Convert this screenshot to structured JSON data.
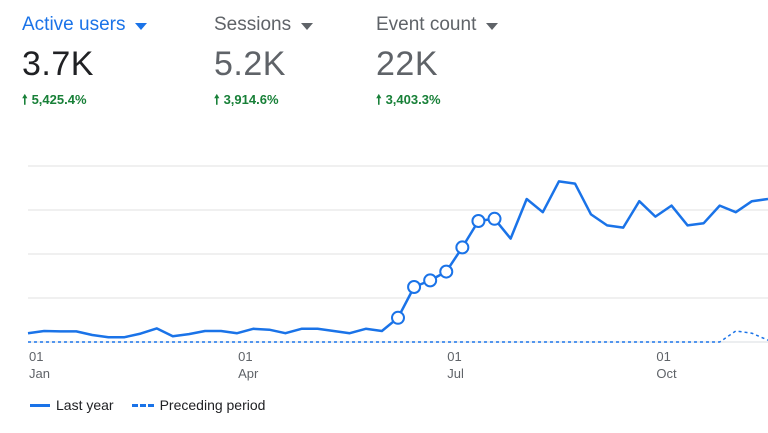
{
  "metrics": [
    {
      "label": "Active users",
      "value": "3.7K",
      "change": "5,425.4%",
      "active": true
    },
    {
      "label": "Sessions",
      "value": "5.2K",
      "change": "3,914.6%",
      "active": false
    },
    {
      "label": "Event count",
      "value": "22K",
      "change": "3,403.3%",
      "active": false
    }
  ],
  "colors": {
    "accent": "#1a73e8",
    "positive": "#188038",
    "grid": "#e0e0e0",
    "muted": "#5f6368"
  },
  "chart_data": {
    "type": "line",
    "x_axis_ticks": [
      {
        "day": "01",
        "month": "Jan",
        "week": 0
      },
      {
        "day": "01",
        "month": "Apr",
        "week": 13
      },
      {
        "day": "01",
        "month": "Jul",
        "week": 26
      },
      {
        "day": "01",
        "month": "Oct",
        "week": 39
      }
    ],
    "x_range": [
      0,
      46
    ],
    "ylim": [
      0,
      400
    ],
    "y_gridlines": [
      0,
      100,
      200,
      300,
      400
    ],
    "y_tick_labels_visible": false,
    "grid": true,
    "legend_position": "bottom-left",
    "series": [
      {
        "name": "Last year",
        "style": "solid",
        "x": [
          0,
          1,
          2,
          3,
          4,
          5,
          6,
          7,
          8,
          9,
          10,
          11,
          12,
          13,
          14,
          15,
          16,
          17,
          18,
          19,
          20,
          21,
          22,
          23,
          24,
          25,
          26,
          27,
          28,
          29,
          30,
          31,
          32,
          33,
          34,
          35,
          36,
          37,
          38,
          39,
          40,
          41,
          42,
          43,
          44,
          45,
          46
        ],
        "values": [
          20,
          25,
          24,
          24,
          16,
          11,
          11,
          19,
          31,
          13,
          18,
          25,
          25,
          20,
          30,
          28,
          20,
          30,
          30,
          25,
          20,
          30,
          25,
          55,
          125,
          140,
          160,
          215,
          275,
          280,
          235,
          325,
          295,
          365,
          360,
          290,
          265,
          260,
          320,
          285,
          310,
          265,
          270,
          310,
          295,
          320,
          325
        ],
        "marked_points": [
          23,
          24,
          25,
          26,
          27,
          28,
          29
        ]
      },
      {
        "name": "Preceding period",
        "style": "dashed",
        "x": [
          0,
          1,
          2,
          3,
          4,
          5,
          6,
          7,
          8,
          9,
          10,
          11,
          12,
          13,
          14,
          15,
          16,
          17,
          18,
          19,
          20,
          21,
          22,
          23,
          24,
          25,
          26,
          27,
          28,
          29,
          30,
          31,
          32,
          33,
          34,
          35,
          36,
          37,
          38,
          39,
          40,
          41,
          42,
          43,
          44,
          45,
          46
        ],
        "values": [
          0,
          0,
          0,
          0,
          0,
          0,
          0,
          0,
          0,
          0,
          0,
          0,
          0,
          0,
          0,
          0,
          0,
          0,
          0,
          0,
          0,
          0,
          0,
          0,
          0,
          0,
          0,
          0,
          0,
          0,
          0,
          0,
          0,
          0,
          0,
          0,
          0,
          0,
          0,
          0,
          0,
          0,
          0,
          0,
          25,
          20,
          4
        ]
      }
    ]
  },
  "legend": {
    "items": [
      "Last year",
      "Preceding period"
    ]
  }
}
